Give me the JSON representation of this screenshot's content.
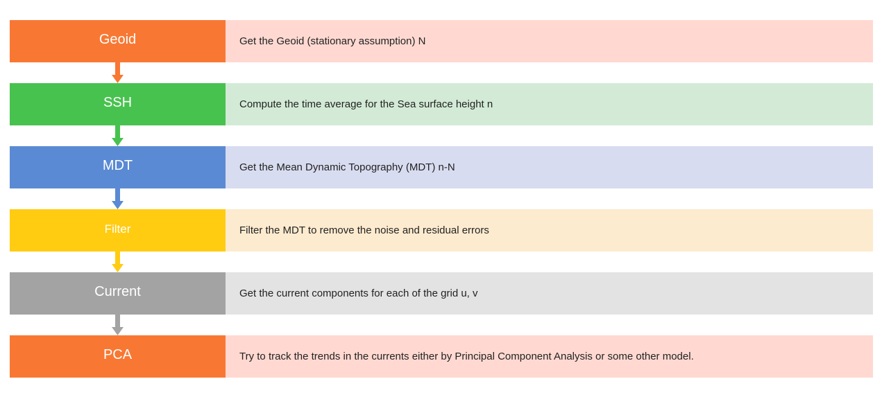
{
  "steps": [
    {
      "label": "Geoid",
      "description": "Get the Geoid (stationary assumption) N",
      "color": "#F87833",
      "desc_bg": "#FFD9D1",
      "small": false
    },
    {
      "label": "SSH",
      "description": "Compute the time average for the Sea surface height n",
      "color": "#48C24F",
      "desc_bg": "#D3EBD6",
      "small": false
    },
    {
      "label": "MDT",
      "description": "Get the Mean Dynamic Topography (MDT) n-N",
      "color": "#5A8AD3",
      "desc_bg": "#D8DCF0",
      "small": false
    },
    {
      "label": "Filter",
      "description": "Filter the MDT to remove the noise and residual errors",
      "color": "#FFCC12",
      "desc_bg": "#FDEBCF",
      "small": true
    },
    {
      "label": "Current",
      "description": "Get the current components for each of the grid u, v",
      "color": "#A3A3A3",
      "desc_bg": "#E3E3E3",
      "small": false
    },
    {
      "label": "PCA",
      "description": "Try to track the trends in the currents either by Principal Component Analysis  or some other model.",
      "color": "#F87833",
      "desc_bg": "#FFD9D1",
      "small": false
    }
  ]
}
